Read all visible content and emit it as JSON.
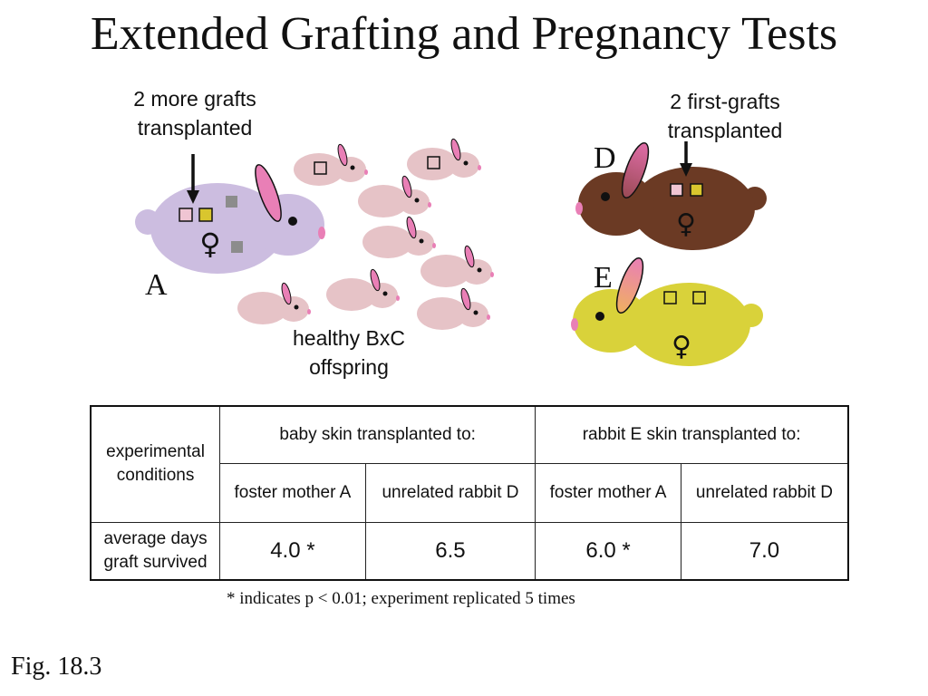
{
  "title": "Extended Grafting and Pregnancy Tests",
  "figure_label": "Fig. 18.3",
  "colors": {
    "rabbit_a": "#ccbde0",
    "offspring": "#e6c3c7",
    "rabbit_d": "#6b3a24",
    "rabbit_e": "#d9d23a",
    "ear_pink": "#e97fb6",
    "graft_yellow": "#d9c62e",
    "graft_pink": "#f0c5d3",
    "graft_gray": "#8c8c8c"
  },
  "diagram": {
    "label_more_grafts": "2 more grafts transplanted",
    "label_first_grafts": "2 first-grafts transplanted",
    "label_offspring": "healthy BxC offspring",
    "rabbit_a_letter": "A",
    "rabbit_d_letter": "D",
    "rabbit_e_letter": "E",
    "female_symbol": "♀"
  },
  "table": {
    "row_header_conditions": "experimental conditions",
    "group_baby": "baby skin transplanted to:",
    "group_rabbit_e": "rabbit E skin transplanted to:",
    "sub_foster_1": "foster mother A",
    "sub_unrelated_1": "unrelated rabbit D",
    "sub_foster_2": "foster mother A",
    "sub_unrelated_2": "unrelated rabbit D",
    "row_header_days": "average days graft survived",
    "val_1": "4.0 *",
    "val_2": "6.5",
    "val_3": "6.0 *",
    "val_4": "7.0"
  },
  "footnote": "* indicates p < 0.01; experiment replicated 5 times"
}
